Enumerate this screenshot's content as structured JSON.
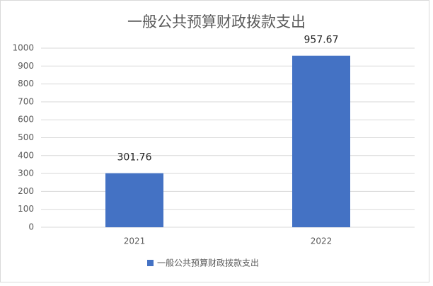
{
  "chart_data": {
    "type": "bar",
    "title": "一般公共预算财政拨款支出",
    "categories": [
      "2021",
      "2022"
    ],
    "series": [
      {
        "name": "一般公共预算财政拨款支出",
        "color": "#4472c4",
        "values": [
          301.76,
          957.67
        ]
      }
    ],
    "ylim": [
      0,
      1000
    ],
    "yticks": [
      0,
      100,
      200,
      300,
      400,
      500,
      600,
      700,
      800,
      900,
      1000
    ],
    "grid": true,
    "legend": "bottom"
  }
}
